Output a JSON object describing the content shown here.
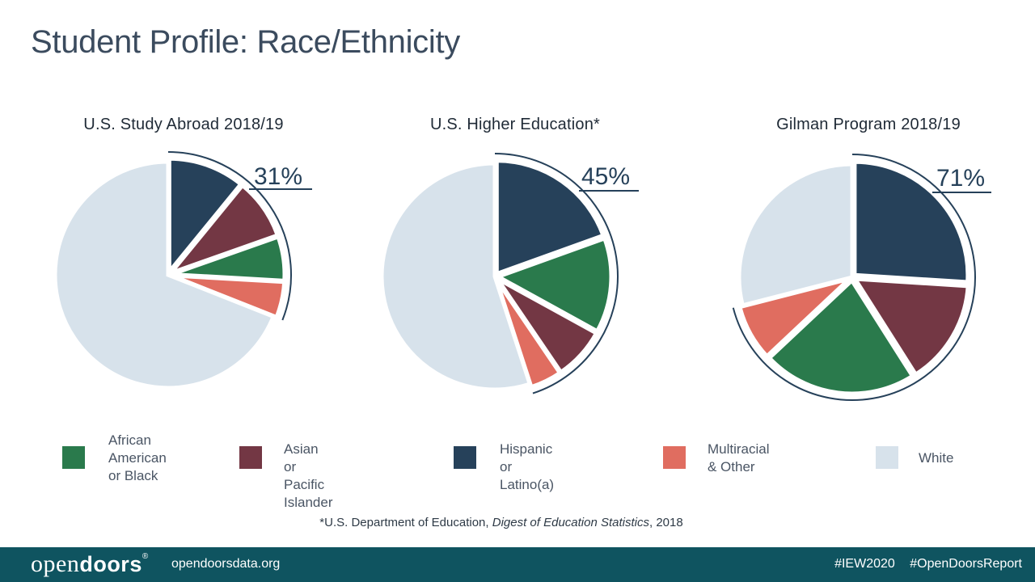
{
  "page": {
    "title": "Student Profile: Race/Ethnicity"
  },
  "colors": {
    "african_american": "#2a7a4c",
    "asian_pacific": "#733744",
    "hispanic": "#26415a",
    "multiracial": "#e06d60",
    "white": "#d7e2eb",
    "bracket": "#26415a"
  },
  "legend": [
    {
      "key": "african_american",
      "label": "African\nAmerican\nor Black"
    },
    {
      "key": "asian_pacific",
      "label": "Asian or Pacific\nIslander"
    },
    {
      "key": "hispanic",
      "label": "Hispanic or\nLatino(a)"
    },
    {
      "key": "multiracial",
      "label": "Multiracial\n& Other"
    },
    {
      "key": "white",
      "label": "White"
    }
  ],
  "chart_data": [
    {
      "type": "pie",
      "title": "U.S. Study Abroad 2018/19",
      "highlight_label": "31%",
      "slices": [
        {
          "key": "hispanic",
          "value": 10.9
        },
        {
          "key": "asian_pacific",
          "value": 8.7
        },
        {
          "key": "african_american",
          "value": 6.3
        },
        {
          "key": "multiracial",
          "value": 5.1
        },
        {
          "key": "white",
          "value": 69.0
        }
      ]
    },
    {
      "type": "pie",
      "title": "U.S. Higher Education*",
      "highlight_label": "45%",
      "slices": [
        {
          "key": "hispanic",
          "value": 19.5
        },
        {
          "key": "african_american",
          "value": 13.5
        },
        {
          "key": "asian_pacific",
          "value": 7.5
        },
        {
          "key": "multiracial",
          "value": 4.5
        },
        {
          "key": "white",
          "value": 55.0
        }
      ]
    },
    {
      "type": "pie",
      "title": "Gilman Program 2018/19",
      "highlight_label": "71%",
      "slices": [
        {
          "key": "hispanic",
          "value": 26.0
        },
        {
          "key": "asian_pacific",
          "value": 15.0
        },
        {
          "key": "african_american",
          "value": 22.0
        },
        {
          "key": "multiracial",
          "value": 8.0
        },
        {
          "key": "white",
          "value": 29.0
        }
      ]
    }
  ],
  "footnote": {
    "prefix": "*U.S. Department of Education, ",
    "source": "Digest of Education Statistics",
    "suffix": ", 2018"
  },
  "footer": {
    "brand_light": "open",
    "brand_bold": "doors",
    "brand_mark": "®",
    "site": "opendoorsdata.org",
    "tags": [
      "#IEW2020",
      "#OpenDoorsReport"
    ]
  }
}
